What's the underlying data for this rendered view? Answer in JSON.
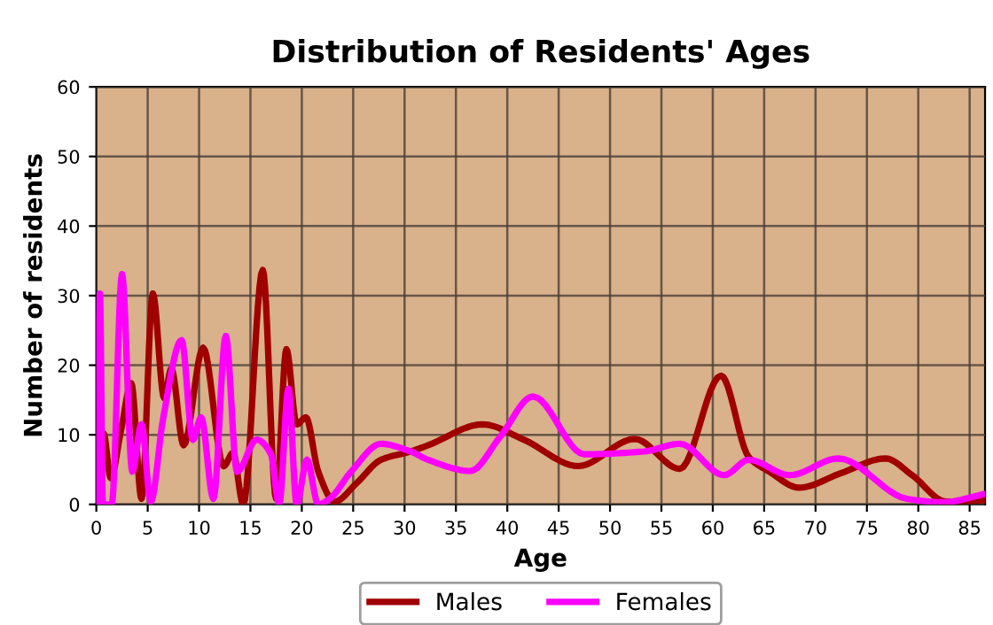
{
  "chart_data": {
    "type": "line",
    "title": "Distribution of Residents' Ages",
    "xlabel": "Age",
    "ylabel": "Number of residents",
    "xlim": [
      0,
      86.5
    ],
    "ylim": [
      0,
      60
    ],
    "xticks": [
      0,
      5,
      10,
      15,
      20,
      25,
      30,
      35,
      40,
      45,
      50,
      55,
      60,
      65,
      70,
      75,
      80,
      85
    ],
    "yticks": [
      0,
      10,
      20,
      30,
      40,
      50,
      60
    ],
    "grid": true,
    "legend": "bottom",
    "series": [
      {
        "name": "Males",
        "color": "#a00000",
        "x": [
          0,
          0.7,
          1.4,
          2.4,
          3.4,
          4.4,
          5.5,
          6.6,
          7.3,
          8.5,
          10.4,
          12.4,
          13.3,
          14.3,
          16.2,
          17.5,
          18.5,
          19.5,
          20.4,
          21.6,
          23.2,
          25.3,
          27.7,
          30.6,
          32.3,
          37.6,
          41.6,
          46.9,
          52.4,
          56.8,
          60.8,
          63.5,
          65.5,
          68.4,
          72.5,
          76.8,
          79.4,
          82.7,
          86.5
        ],
        "values": [
          9.8,
          10.2,
          3.8,
          10.6,
          17.4,
          0.8,
          30.3,
          15.3,
          19.5,
          8.5,
          22.5,
          5.5,
          7.4,
          0,
          33.7,
          0.8,
          22.3,
          11.5,
          12.5,
          4.7,
          0.4,
          3,
          6.4,
          7.6,
          8.5,
          11.5,
          9.3,
          5.5,
          9.4,
          5.1,
          18.5,
          6.8,
          4.7,
          2.4,
          4.5,
          6.6,
          4.2,
          0.4,
          0.6
        ]
      },
      {
        "name": "Females",
        "color": "#ff00ff",
        "x": [
          0,
          0.35,
          0.64,
          1.5,
          2.5,
          3.5,
          4.4,
          5.3,
          6.5,
          8.3,
          9.4,
          10.2,
          11.4,
          12.6,
          13.7,
          15.6,
          17,
          17.8,
          18.7,
          19.5,
          20.5,
          21.6,
          22.7,
          24.8,
          27.7,
          30.6,
          32.3,
          36.4,
          39.3,
          42.5,
          47.5,
          53.3,
          56.8,
          61.1,
          63.5,
          67.5,
          72.2,
          78.9,
          82.4,
          86.5
        ],
        "values": [
          0,
          30.3,
          0,
          0,
          33.1,
          4.7,
          11.5,
          0.4,
          12.3,
          23.6,
          9.3,
          12.5,
          0.8,
          24.2,
          4.7,
          9.3,
          7.2,
          0,
          16.6,
          0,
          6.4,
          0,
          0.8,
          4.7,
          8.7,
          7.6,
          6.4,
          4.8,
          9.7,
          15.5,
          7.2,
          7.6,
          8.7,
          4.2,
          6.4,
          4.2,
          6.6,
          0.8,
          0.3,
          1.5
        ]
      }
    ]
  }
}
